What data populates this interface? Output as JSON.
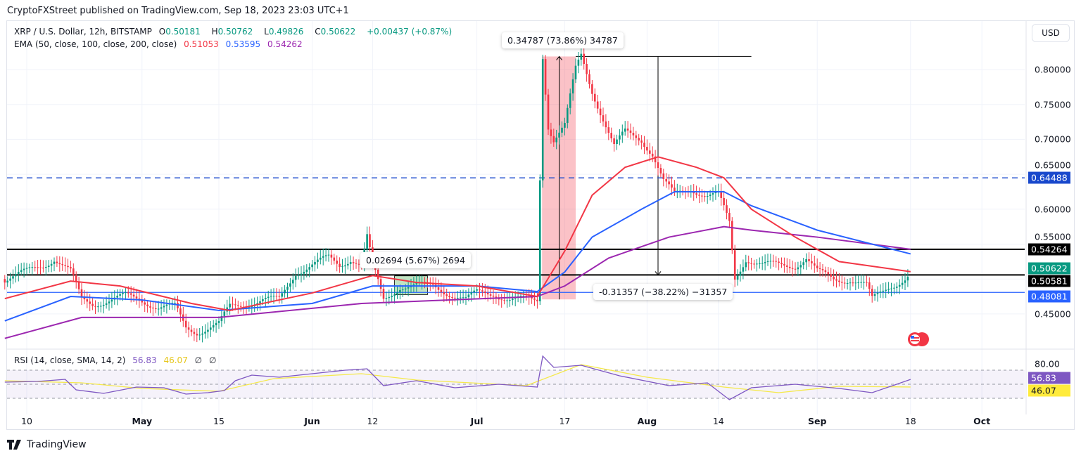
{
  "publisher_line": "CryptoFXStreet published on TradingView.com, Sep 18, 2023 23:03 UTC+1",
  "symbol": {
    "title": "XRP / U.S. Dollar, 12h, BITSTAMP",
    "o_label": "O",
    "o": "0.50181",
    "h_label": "H",
    "h": "0.50762",
    "l_label": "L",
    "l": "0.49826",
    "c_label": "C",
    "c": "0.50622",
    "change": "+0.00437 (+0.87%)"
  },
  "ema": {
    "label": "EMA (50, close, 100, close, 200, close)",
    "v50": "0.51053",
    "v100": "0.53595",
    "v200": "0.54262"
  },
  "rsi": {
    "label": "RSI (14, close, SMA, 14, 2)",
    "value": "56.83",
    "sma": "46.07",
    "extra1": "∅",
    "extra2": "∅"
  },
  "currency": "USD",
  "price_ticks": [
    "0.80000",
    "0.75000",
    "0.70000",
    "0.65000",
    "0.60000",
    "0.55000",
    "0.45000"
  ],
  "rsi_tick": "80.00",
  "price_labels": [
    {
      "value": "0.64488",
      "color": "#1848cc"
    },
    {
      "value": "0.54264",
      "color": "#000000"
    },
    {
      "value": "0.50622",
      "color": "#089981"
    },
    {
      "value": "0.50581",
      "color": "#000000"
    },
    {
      "value": "0.48081",
      "color": "#2962ff"
    }
  ],
  "rsi_labels": [
    {
      "value": "56.83",
      "color": "#7e57c2"
    },
    {
      "value": "46.07",
      "color": "#ffeb3b"
    }
  ],
  "x_labels": [
    {
      "t": "10",
      "bold": false
    },
    {
      "t": "May",
      "bold": true
    },
    {
      "t": "15",
      "bold": false
    },
    {
      "t": "Jun",
      "bold": true
    },
    {
      "t": "12",
      "bold": false
    },
    {
      "t": "Jul",
      "bold": true
    },
    {
      "t": "17",
      "bold": false
    },
    {
      "t": "Aug",
      "bold": true
    },
    {
      "t": "14",
      "bold": false
    },
    {
      "t": "Sep",
      "bold": true
    },
    {
      "t": "18",
      "bold": false
    },
    {
      "t": "Oct",
      "bold": true
    }
  ],
  "measurements": {
    "up_big": "0.34787 (73.86%) 34787",
    "down": "-0.31357 (−38.22%) −31357",
    "up_small": "0.02694 (5.67%) 2694"
  },
  "brand": "TradingView",
  "colors": {
    "up": "#089981",
    "down": "#f23645",
    "ema50": "#f23645",
    "ema100": "#2962ff",
    "ema200": "#9c27b0",
    "rsi": "#7e57c2",
    "rsi_sma": "#f5e94a"
  },
  "chart_data": {
    "type": "candlestick",
    "ylim": [
      0.41,
      0.85
    ],
    "x_range": [
      "2023-04-06",
      "2023-10-08"
    ],
    "closes": [
      [
        "2023-04-06",
        0.5
      ],
      [
        "2023-04-10",
        0.51
      ],
      [
        "2023-04-13",
        0.52
      ],
      [
        "2023-04-15",
        0.53
      ],
      [
        "2023-04-18",
        0.51
      ],
      [
        "2023-04-20",
        0.47
      ],
      [
        "2023-04-22",
        0.465
      ],
      [
        "2023-04-25",
        0.47
      ],
      [
        "2023-04-28",
        0.475
      ],
      [
        "2023-05-01",
        0.47
      ],
      [
        "2023-05-04",
        0.46
      ],
      [
        "2023-05-07",
        0.46
      ],
      [
        "2023-05-09",
        0.43
      ],
      [
        "2023-05-11",
        0.425
      ],
      [
        "2023-05-13",
        0.43
      ],
      [
        "2023-05-15",
        0.435
      ],
      [
        "2023-05-17",
        0.46
      ],
      [
        "2023-05-20",
        0.465
      ],
      [
        "2023-05-23",
        0.47
      ],
      [
        "2023-05-26",
        0.47
      ],
      [
        "2023-05-29",
        0.51
      ],
      [
        "2023-06-01",
        0.52
      ],
      [
        "2023-06-04",
        0.53
      ],
      [
        "2023-06-06",
        0.52
      ],
      [
        "2023-06-08",
        0.53
      ],
      [
        "2023-06-10",
        0.52
      ],
      [
        "2023-06-11",
        0.56
      ],
      [
        "2023-06-12",
        0.52
      ],
      [
        "2023-06-14",
        0.47
      ],
      [
        "2023-06-17",
        0.49
      ],
      [
        "2023-06-20",
        0.49
      ],
      [
        "2023-06-23",
        0.49
      ],
      [
        "2023-06-26",
        0.48
      ],
      [
        "2023-06-29",
        0.47
      ],
      [
        "2023-07-01",
        0.48
      ],
      [
        "2023-07-04",
        0.48
      ],
      [
        "2023-07-07",
        0.47
      ],
      [
        "2023-07-10",
        0.47
      ],
      [
        "2023-07-12",
        0.47
      ],
      [
        "2023-07-13",
        0.82
      ],
      [
        "2023-07-14",
        0.72
      ],
      [
        "2023-07-15",
        0.7
      ],
      [
        "2023-07-17",
        0.72
      ],
      [
        "2023-07-19",
        0.8
      ],
      [
        "2023-07-20",
        0.82
      ],
      [
        "2023-07-22",
        0.77
      ],
      [
        "2023-07-24",
        0.73
      ],
      [
        "2023-07-26",
        0.69
      ],
      [
        "2023-07-28",
        0.71
      ],
      [
        "2023-07-31",
        0.7
      ],
      [
        "2023-08-02",
        0.68
      ],
      [
        "2023-08-04",
        0.64
      ],
      [
        "2023-08-06",
        0.62
      ],
      [
        "2023-08-09",
        0.63
      ],
      [
        "2023-08-12",
        0.62
      ],
      [
        "2023-08-14",
        0.62
      ],
      [
        "2023-08-16",
        0.58
      ],
      [
        "2023-08-17",
        0.5
      ],
      [
        "2023-08-19",
        0.53
      ],
      [
        "2023-08-22",
        0.52
      ],
      [
        "2023-08-25",
        0.52
      ],
      [
        "2023-08-28",
        0.52
      ],
      [
        "2023-08-30",
        0.53
      ],
      [
        "2023-09-01",
        0.51
      ],
      [
        "2023-09-04",
        0.5
      ],
      [
        "2023-09-07",
        0.5
      ],
      [
        "2023-09-10",
        0.49
      ],
      [
        "2023-09-11",
        0.47
      ],
      [
        "2023-09-14",
        0.49
      ],
      [
        "2023-09-17",
        0.5
      ],
      [
        "2023-09-18",
        0.50622
      ]
    ],
    "ema50": [
      [
        "2023-04-06",
        0.472
      ],
      [
        "2023-04-18",
        0.497
      ],
      [
        "2023-04-27",
        0.49
      ],
      [
        "2023-05-10",
        0.465
      ],
      [
        "2023-05-17",
        0.455
      ],
      [
        "2023-06-01",
        0.48
      ],
      [
        "2023-06-12",
        0.505
      ],
      [
        "2023-06-20",
        0.495
      ],
      [
        "2023-07-01",
        0.49
      ],
      [
        "2023-07-12",
        0.475
      ],
      [
        "2023-07-17",
        0.54
      ],
      [
        "2023-07-22",
        0.62
      ],
      [
        "2023-07-28",
        0.66
      ],
      [
        "2023-08-03",
        0.675
      ],
      [
        "2023-08-10",
        0.66
      ],
      [
        "2023-08-15",
        0.645
      ],
      [
        "2023-08-20",
        0.6
      ],
      [
        "2023-08-28",
        0.56
      ],
      [
        "2023-09-05",
        0.525
      ],
      [
        "2023-09-18",
        0.51053
      ]
    ],
    "ema100": [
      [
        "2023-04-06",
        0.44
      ],
      [
        "2023-04-18",
        0.475
      ],
      [
        "2023-05-01",
        0.47
      ],
      [
        "2023-05-15",
        0.455
      ],
      [
        "2023-06-01",
        0.465
      ],
      [
        "2023-06-12",
        0.49
      ],
      [
        "2023-07-01",
        0.49
      ],
      [
        "2023-07-12",
        0.482
      ],
      [
        "2023-07-17",
        0.51
      ],
      [
        "2023-07-22",
        0.56
      ],
      [
        "2023-07-31",
        0.6
      ],
      [
        "2023-08-06",
        0.625
      ],
      [
        "2023-08-15",
        0.625
      ],
      [
        "2023-08-20",
        0.605
      ],
      [
        "2023-09-01",
        0.57
      ],
      [
        "2023-09-18",
        0.53595
      ]
    ],
    "ema200": [
      [
        "2023-04-06",
        0.415
      ],
      [
        "2023-04-20",
        0.445
      ],
      [
        "2023-05-15",
        0.445
      ],
      [
        "2023-06-10",
        0.465
      ],
      [
        "2023-07-12",
        0.475
      ],
      [
        "2023-07-17",
        0.49
      ],
      [
        "2023-07-25",
        0.53
      ],
      [
        "2023-08-05",
        0.56
      ],
      [
        "2023-08-15",
        0.575
      ],
      [
        "2023-08-20",
        0.57
      ],
      [
        "2023-09-01",
        0.56
      ],
      [
        "2023-09-18",
        0.54262
      ]
    ],
    "hlines": [
      {
        "price": 0.64488,
        "style": "dashed",
        "color": "#1848cc"
      },
      {
        "price": 0.54264,
        "style": "solid",
        "color": "#000000"
      },
      {
        "price": 0.50581,
        "style": "solid",
        "color": "#000000"
      },
      {
        "price": 0.48081,
        "style": "solid",
        "color": "#2962ff"
      }
    ],
    "rsi": [
      [
        "2023-04-06",
        53
      ],
      [
        "2023-04-12",
        54
      ],
      [
        "2023-04-17",
        57
      ],
      [
        "2023-04-19",
        42
      ],
      [
        "2023-04-24",
        37
      ],
      [
        "2023-04-30",
        46
      ],
      [
        "2023-05-05",
        45
      ],
      [
        "2023-05-09",
        36
      ],
      [
        "2023-05-13",
        38
      ],
      [
        "2023-05-16",
        41
      ],
      [
        "2023-05-18",
        55
      ],
      [
        "2023-05-21",
        63
      ],
      [
        "2023-05-26",
        60
      ],
      [
        "2023-06-01",
        65
      ],
      [
        "2023-06-07",
        70
      ],
      [
        "2023-06-11",
        72
      ],
      [
        "2023-06-14",
        48
      ],
      [
        "2023-06-20",
        55
      ],
      [
        "2023-06-27",
        45
      ],
      [
        "2023-07-05",
        50
      ],
      [
        "2023-07-12",
        46
      ],
      [
        "2023-07-13",
        90
      ],
      [
        "2023-07-15",
        74
      ],
      [
        "2023-07-20",
        77
      ],
      [
        "2023-07-27",
        62
      ],
      [
        "2023-08-05",
        48
      ],
      [
        "2023-08-12",
        52
      ],
      [
        "2023-08-16",
        28
      ],
      [
        "2023-08-20",
        45
      ],
      [
        "2023-08-28",
        50
      ],
      [
        "2023-09-05",
        44
      ],
      [
        "2023-09-11",
        38
      ],
      [
        "2023-09-18",
        56.83
      ]
    ],
    "rsi_sma": [
      [
        "2023-04-06",
        55
      ],
      [
        "2023-04-20",
        52
      ],
      [
        "2023-05-01",
        44
      ],
      [
        "2023-05-15",
        40
      ],
      [
        "2023-05-25",
        58
      ],
      [
        "2023-06-10",
        65
      ],
      [
        "2023-06-20",
        56
      ],
      [
        "2023-07-10",
        48
      ],
      [
        "2023-07-20",
        78
      ],
      [
        "2023-08-01",
        60
      ],
      [
        "2023-08-15",
        46
      ],
      [
        "2023-08-25",
        38
      ],
      [
        "2023-09-05",
        47
      ],
      [
        "2023-09-18",
        46.07
      ]
    ],
    "rsi_levels": [
      70,
      50,
      30
    ]
  }
}
